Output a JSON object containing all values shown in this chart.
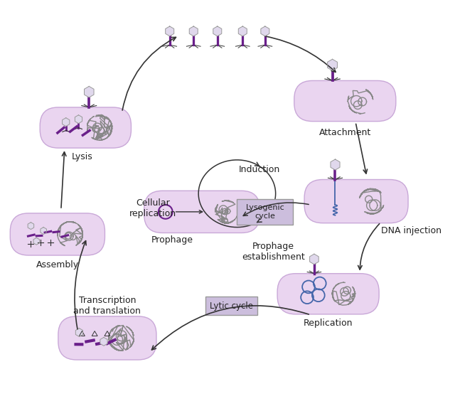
{
  "bg_color": "#ffffff",
  "cell_fill": "#ead5f0",
  "cell_fill2": "#dcc8e8",
  "cell_edge": "#c9a8d8",
  "phage_head_fill": "#e0d8ec",
  "phage_head_edge": "#999999",
  "phage_tail_color": "#6a1f8a",
  "dna_color": "#888888",
  "purple": "#6a1f8a",
  "blue_color": "#4466aa",
  "arrow_color": "#333333",
  "label_color": "#222222",
  "box_fill": "#ccbedd",
  "box_edge": "#999999",
  "labels": {
    "attachment": "Attachment",
    "dna_injection": "DNA injection",
    "replication": "Replication",
    "transcription": "Transcription\nand translation",
    "assembly": "Assembly",
    "lysis": "Lysis",
    "prophage": "Prophage",
    "cellular_replication": "Cellular\nreplication",
    "induction": "Induction",
    "prophage_establishment": "Prophage\nestablishment",
    "lysogenic_cycle": "Lysogenic\ncycle",
    "lytic_cycle": "Lytic cycle"
  }
}
